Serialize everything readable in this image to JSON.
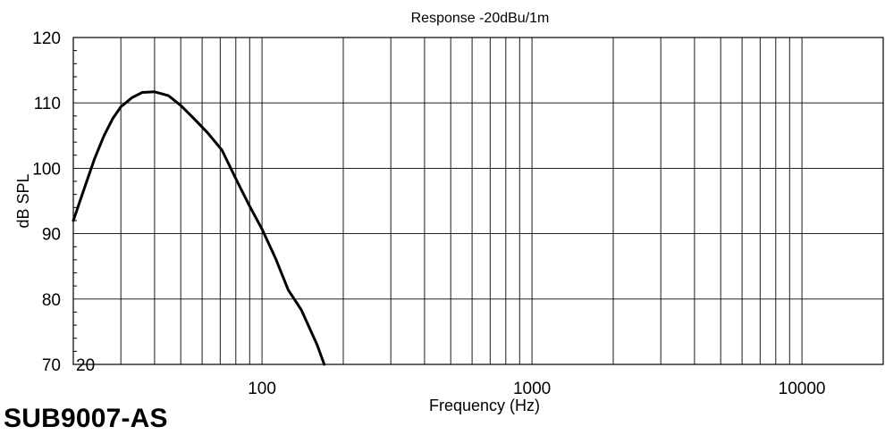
{
  "model_name": "SUB9007-AS",
  "chart_data": {
    "type": "line",
    "title": "Response -20dBu/1m",
    "xlabel": "Frequency (Hz)",
    "ylabel": "dB SPL",
    "x_scale": "log",
    "xlim": [
      20,
      20000
    ],
    "ylim": [
      70,
      120
    ],
    "y_ticks": [
      70,
      80,
      90,
      100,
      110,
      120
    ],
    "x_tick_labels": [
      {
        "value": 20,
        "label": "20"
      },
      {
        "value": 100,
        "label": "100"
      },
      {
        "value": 1000,
        "label": "1000"
      },
      {
        "value": 10000,
        "label": "10000"
      }
    ],
    "grid": true,
    "series": [
      {
        "color": "#000000",
        "x": [
          20,
          22,
          24,
          26,
          28,
          30,
          33,
          36,
          40,
          45,
          50,
          56,
          63,
          71,
          80,
          90,
          100,
          112,
          125,
          140,
          160,
          170
        ],
        "y": [
          92,
          97,
          101.5,
          105,
          107.6,
          109.4,
          110.8,
          111.6,
          111.7,
          111.1,
          109.6,
          107.6,
          105.4,
          102.8,
          98.4,
          94.2,
          90.7,
          86.3,
          81.4,
          78.3,
          73.0,
          70.0
        ]
      }
    ]
  }
}
